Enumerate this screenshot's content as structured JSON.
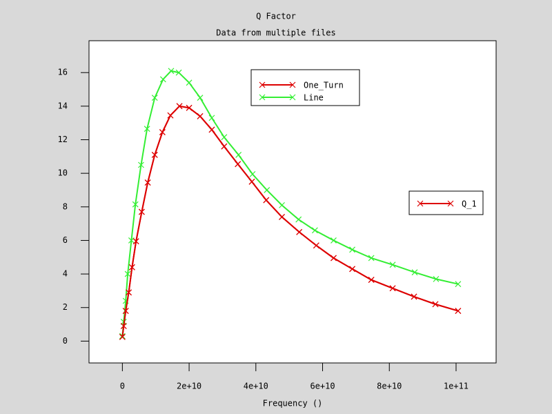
{
  "chart_data": {
    "type": "line",
    "title": "Q Factor",
    "subtitle": "Data from multiple files",
    "x_label": "Frequency ()",
    "xlim": [
      -10000000000,
      112000000000
    ],
    "xticks": [
      {
        "value": 0,
        "label": "0"
      },
      {
        "value": 20000000000,
        "label": "2e+10"
      },
      {
        "value": 40000000000,
        "label": "4e+10"
      },
      {
        "value": 60000000000,
        "label": "6e+10"
      },
      {
        "value": 80000000000,
        "label": "8e+10"
      },
      {
        "value": 100000000000,
        "label": "1e+11"
      }
    ],
    "ylim": [
      -1.3,
      17.9
    ],
    "yticks": [
      0,
      2,
      4,
      6,
      8,
      10,
      12,
      14,
      16
    ],
    "series": [
      {
        "name": "One_Turn",
        "color": "#dd0000",
        "x": [
          0,
          400000000,
          1000000000,
          1900000000,
          2900000000,
          4100000000,
          5800000000,
          7600000000,
          9700000000,
          12000000000,
          14400000000,
          17100000000,
          20000000000,
          23300000000,
          26800000000,
          30500000000,
          34600000000,
          38800000000,
          43100000000,
          47800000000,
          53000000000,
          58100000000,
          63300000000,
          68900000000,
          74600000000,
          81000000000,
          87400000000,
          93800000000,
          100600000000
        ],
        "values": [
          0.25,
          0.9,
          1.8,
          2.9,
          4.4,
          5.95,
          7.7,
          9.45,
          11.1,
          12.45,
          13.45,
          14.0,
          13.9,
          13.4,
          12.6,
          11.6,
          10.55,
          9.5,
          8.4,
          7.4,
          6.5,
          5.7,
          4.95,
          4.3,
          3.65,
          3.15,
          2.65,
          2.2,
          1.8
        ]
      },
      {
        "name": "Line",
        "color": "#33ee33",
        "x": [
          0,
          400000000,
          1000000000,
          1600000000,
          2700000000,
          3900000000,
          5600000000,
          7400000000,
          9700000000,
          12200000000,
          14600000000,
          16900000000,
          20000000000,
          23300000000,
          26800000000,
          30500000000,
          34800000000,
          39000000000,
          43300000000,
          47800000000,
          52800000000,
          57700000000,
          63300000000,
          68900000000,
          74600000000,
          81000000000,
          87600000000,
          94000000000,
          100600000000
        ],
        "values": [
          0.3,
          1.15,
          2.4,
          4.0,
          6.0,
          8.15,
          10.5,
          12.65,
          14.5,
          15.6,
          16.1,
          16.0,
          15.4,
          14.5,
          13.3,
          12.15,
          11.1,
          9.95,
          9.0,
          8.1,
          7.25,
          6.6,
          6.0,
          5.45,
          4.95,
          4.55,
          4.1,
          3.7,
          3.4
        ]
      },
      {
        "name": "Q_1",
        "color": "#dd0000",
        "x": [
          0,
          400000000,
          1000000000,
          1900000000,
          2900000000,
          4100000000,
          5800000000,
          7600000000,
          9700000000,
          12000000000,
          14400000000,
          17100000000,
          20000000000,
          23300000000,
          26800000000,
          30500000000,
          34600000000,
          38800000000,
          43100000000,
          47800000000,
          53000000000,
          58100000000,
          63300000000,
          68900000000,
          74600000000,
          81000000000,
          87400000000,
          93800000000,
          100600000000
        ],
        "values": [
          0.25,
          0.9,
          1.8,
          2.9,
          4.4,
          5.95,
          7.7,
          9.45,
          11.1,
          12.45,
          13.45,
          14.0,
          13.9,
          13.4,
          12.6,
          11.6,
          10.55,
          9.5,
          8.4,
          7.4,
          6.5,
          5.7,
          4.95,
          4.3,
          3.65,
          3.15,
          2.65,
          2.2,
          1.8
        ]
      }
    ]
  }
}
